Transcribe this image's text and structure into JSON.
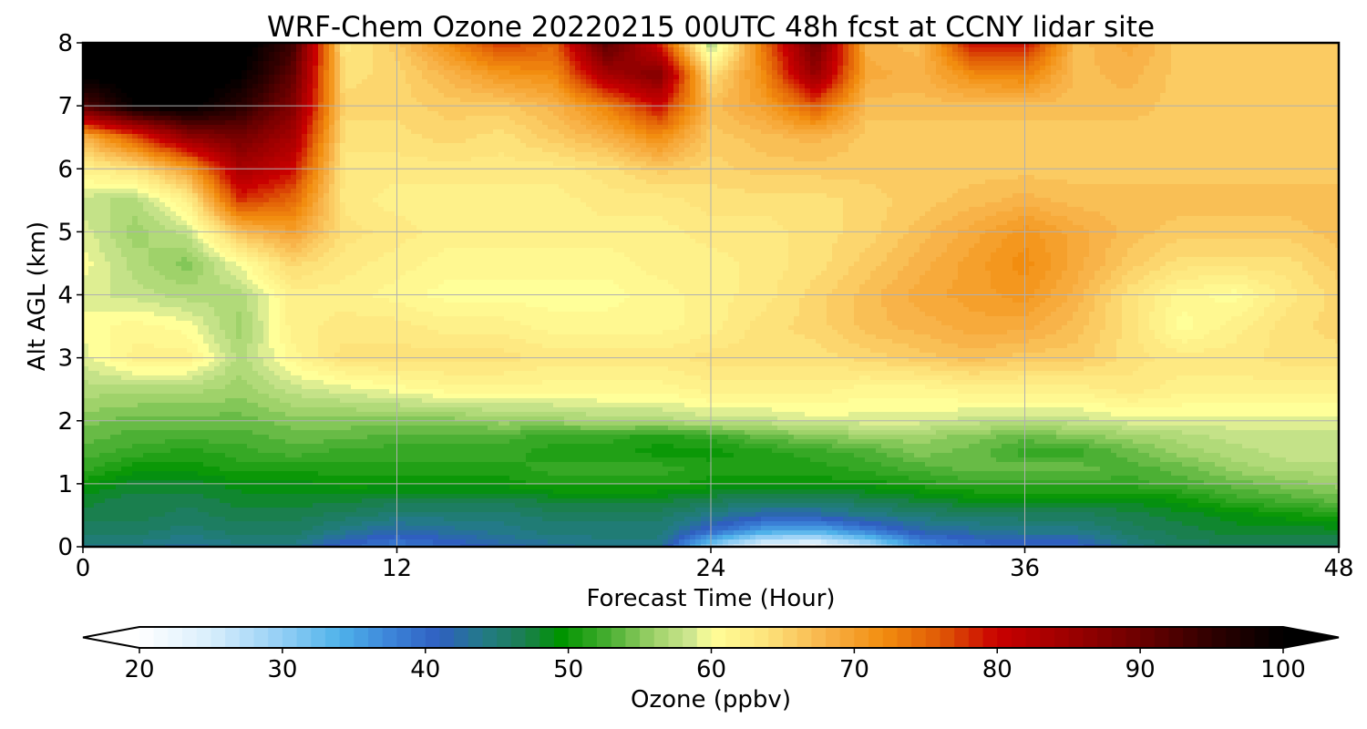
{
  "chart_data": {
    "type": "heatmap",
    "title": "WRF-Chem Ozone  20220215 00UTC 48h fcst at CCNY lidar site",
    "xlabel": "Forecast Time (Hour)",
    "ylabel": "Alt AGL (km)",
    "xlim": [
      0,
      48
    ],
    "ylim": [
      0,
      8
    ],
    "x_ticks": [
      0,
      12,
      24,
      36,
      48
    ],
    "y_ticks": [
      0,
      1,
      2,
      3,
      4,
      5,
      6,
      7,
      8
    ],
    "grid": true,
    "colorbar": {
      "label": "Ozone  (ppbv)",
      "min": 20,
      "max": 100,
      "ticks": [
        20,
        30,
        40,
        50,
        60,
        70,
        80,
        90,
        100
      ],
      "extend": "both",
      "levels_step": 1
    },
    "x": [
      0,
      2,
      4,
      6,
      8,
      10,
      12,
      14,
      16,
      18,
      20,
      22,
      24,
      26,
      28,
      30,
      32,
      34,
      36,
      38,
      40,
      42,
      44,
      46,
      48
    ],
    "y": [
      0,
      0.25,
      0.5,
      0.75,
      1,
      1.25,
      1.5,
      1.75,
      2,
      2.5,
      3,
      3.5,
      4,
      4.5,
      5,
      5.5,
      6,
      6.5,
      7,
      7.5,
      8
    ],
    "z": [
      [
        44,
        44,
        43,
        44,
        44,
        40,
        38,
        40,
        42,
        43,
        44,
        44,
        30,
        22,
        21,
        27,
        36,
        39,
        40,
        40,
        44,
        46,
        46,
        46,
        46
      ],
      [
        46,
        46,
        45,
        46,
        46,
        44,
        42,
        43,
        44,
        45,
        45,
        45,
        40,
        35,
        34,
        38,
        42,
        43,
        44,
        44,
        46,
        47,
        48,
        48,
        48
      ],
      [
        47,
        47,
        46,
        47,
        47,
        46,
        45,
        45,
        45,
        46,
        46,
        46,
        44,
        42,
        42,
        44,
        45,
        46,
        46,
        46,
        47,
        48,
        49,
        50,
        51
      ],
      [
        48,
        47,
        47,
        48,
        48,
        48,
        47,
        47,
        47,
        48,
        48,
        48,
        47,
        46,
        46,
        47,
        48,
        49,
        49,
        49,
        49,
        50,
        52,
        53,
        54
      ],
      [
        50,
        48,
        48,
        49,
        49,
        50,
        50,
        50,
        50,
        51,
        51,
        51,
        50,
        50,
        50,
        50,
        51,
        52,
        52,
        52,
        52,
        53,
        54,
        55,
        56
      ],
      [
        52,
        50,
        50,
        51,
        51,
        51,
        51,
        51,
        51,
        52,
        52,
        52,
        51,
        51,
        51,
        52,
        53,
        54,
        54,
        54,
        53,
        54,
        56,
        57,
        57
      ],
      [
        53,
        52,
        51,
        52,
        53,
        52,
        52,
        52,
        52,
        51,
        51,
        50,
        50,
        51,
        52,
        53,
        55,
        54,
        52,
        52,
        54,
        56,
        57,
        58,
        58
      ],
      [
        54,
        53,
        53,
        53,
        54,
        54,
        53,
        53,
        53,
        52,
        52,
        51,
        52,
        54,
        55,
        56,
        56,
        55,
        54,
        55,
        56,
        57,
        58,
        58,
        58
      ],
      [
        55,
        54,
        54,
        54,
        55,
        55,
        55,
        55,
        56,
        56,
        57,
        57,
        58,
        58,
        59,
        59,
        59,
        58,
        58,
        58,
        59,
        59,
        59,
        59,
        59
      ],
      [
        57,
        57,
        57,
        56,
        58,
        59,
        60,
        61,
        61,
        61,
        61,
        61,
        62,
        62,
        62,
        61,
        61,
        62,
        62,
        62,
        63,
        62,
        62,
        62,
        62
      ],
      [
        59,
        62,
        62,
        57,
        61,
        64,
        64,
        64,
        64,
        63,
        63,
        63,
        64,
        64,
        64,
        65,
        66,
        67,
        66,
        66,
        64,
        63,
        63,
        64,
        64
      ],
      [
        60,
        61,
        60,
        56,
        62,
        63,
        63,
        62,
        62,
        61,
        61,
        61,
        62,
        64,
        65,
        67,
        68,
        69,
        69,
        67,
        64,
        60,
        62,
        64,
        65
      ],
      [
        59,
        58,
        57,
        57,
        62,
        62,
        61,
        60,
        60,
        60,
        60,
        61,
        62,
        63,
        65,
        67,
        69,
        70,
        71,
        68,
        64,
        61,
        60,
        63,
        65
      ],
      [
        60,
        57,
        55,
        60,
        65,
        63,
        62,
        61,
        61,
        61,
        61,
        62,
        62,
        63,
        64,
        66,
        68,
        70,
        72,
        69,
        66,
        64,
        64,
        64,
        66
      ],
      [
        59,
        56,
        58,
        67,
        70,
        64,
        63,
        62,
        62,
        62,
        62,
        62,
        63,
        63,
        64,
        65,
        67,
        69,
        71,
        69,
        67,
        66,
        66,
        66,
        67
      ],
      [
        58,
        57,
        62,
        78,
        75,
        63,
        62,
        62,
        62,
        62,
        63,
        63,
        64,
        64,
        64,
        65,
        66,
        67,
        68,
        67,
        67,
        67,
        67,
        67,
        67
      ],
      [
        62,
        64,
        70,
        84,
        80,
        63,
        63,
        63,
        63,
        63,
        64,
        66,
        65,
        66,
        66,
        66,
        66,
        66,
        66,
        66,
        66,
        66,
        66,
        66,
        66
      ],
      [
        68,
        76,
        86,
        89,
        84,
        64,
        64,
        65,
        64,
        66,
        68,
        72,
        66,
        67,
        68,
        66,
        66,
        66,
        66,
        66,
        66,
        66,
        66,
        66,
        66
      ],
      [
        92,
        100,
        101,
        96,
        88,
        65,
        65,
        66,
        66,
        68,
        73,
        80,
        67,
        70,
        76,
        67,
        67,
        67,
        67,
        67,
        67,
        66,
        66,
        66,
        66
      ],
      [
        101,
        101,
        102,
        100,
        91,
        64,
        65,
        68,
        71,
        72,
        84,
        88,
        64,
        72,
        86,
        69,
        68,
        72,
        73,
        67,
        68,
        66,
        66,
        66,
        66
      ],
      [
        102,
        102,
        102,
        102,
        94,
        63,
        66,
        72,
        78,
        75,
        92,
        79,
        56,
        74,
        90,
        68,
        67,
        80,
        80,
        67,
        69,
        66,
        66,
        66,
        66
      ]
    ]
  }
}
